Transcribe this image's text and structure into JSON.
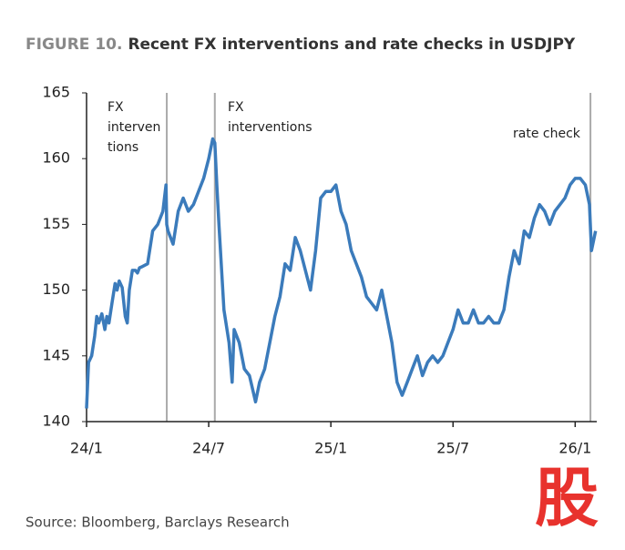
{
  "chart_data": {
    "type": "line",
    "title_prefix": "FIGURE 10.",
    "title": "Recent FX interventions and rate checks in USDJPY",
    "source": "Source: Bloomberg, Barclays Research",
    "watermark": "股",
    "x": [
      0,
      0.1,
      0.25,
      0.4,
      0.5,
      0.6,
      0.75,
      0.9,
      1.0,
      1.1,
      1.25,
      1.4,
      1.5,
      1.6,
      1.75,
      1.9,
      2.0,
      2.1,
      2.25,
      2.4,
      2.5,
      2.6,
      2.75,
      3.0,
      3.25,
      3.5,
      3.75,
      3.9,
      3.94,
      4.0,
      4.25,
      4.5,
      4.75,
      5.0,
      5.25,
      5.5,
      5.75,
      6.0,
      6.2,
      6.3,
      6.4,
      6.5,
      6.75,
      7.0,
      7.15,
      7.25,
      7.5,
      7.75,
      8.0,
      8.3,
      8.5,
      8.75,
      9.0,
      9.25,
      9.5,
      9.75,
      10.0,
      10.25,
      10.5,
      10.75,
      11.0,
      11.25,
      11.5,
      11.75,
      12.0,
      12.25,
      12.5,
      12.75,
      13.0,
      13.25,
      13.5,
      13.75,
      14.0,
      14.25,
      14.5,
      14.75,
      15.0,
      15.25,
      15.5,
      15.75,
      16.0,
      16.25,
      16.5,
      16.75,
      17.0,
      17.25,
      17.5,
      17.75,
      18.0,
      18.25,
      18.5,
      18.75,
      19.0,
      19.25,
      19.5,
      19.75,
      20.0,
      20.25,
      20.5,
      20.75,
      21.0,
      21.25,
      21.5,
      21.75,
      22.0,
      22.25,
      22.5,
      22.75,
      23.0,
      23.25,
      23.5,
      23.75,
      24.0,
      24.25,
      24.5,
      24.7,
      24.8,
      25.0
    ],
    "series": [
      {
        "name": "USDJPY",
        "color": "#3b7bbb",
        "values": [
          141,
          144.5,
          145,
          146.5,
          148,
          147.5,
          148.2,
          147,
          148,
          147.5,
          149,
          150.5,
          150,
          150.7,
          150.2,
          148,
          147.5,
          150,
          151.5,
          151.5,
          151.3,
          151.7,
          151.8,
          152,
          154.5,
          155,
          156,
          158,
          155,
          154.5,
          153.5,
          156,
          157,
          156,
          156.5,
          157.5,
          158.5,
          160,
          161.5,
          161.2,
          158,
          155,
          148.5,
          146,
          143,
          147,
          146,
          144,
          143.5,
          141.5,
          143,
          144,
          146,
          148,
          149.5,
          152,
          151.5,
          154,
          153,
          151.5,
          150,
          153,
          157,
          157.5,
          157.5,
          158,
          156,
          155,
          153,
          152,
          151,
          149.5,
          149,
          148.5,
          150,
          148,
          146,
          143,
          142,
          143,
          144,
          145,
          143.5,
          144.5,
          145,
          144.5,
          145,
          146,
          147,
          148.5,
          147.5,
          147.5,
          148.5,
          147.5,
          147.5,
          148,
          147.5,
          147.5,
          148.5,
          151,
          153,
          152,
          154.5,
          154,
          155.5,
          156.5,
          156,
          155,
          156,
          156.5,
          157,
          158,
          158.5,
          158.5,
          158,
          156.5,
          153,
          154.5
        ]
      }
    ],
    "xlim": [
      0,
      25.06
    ],
    "xticks": [
      {
        "value": 0,
        "label": "24/1"
      },
      {
        "value": 6,
        "label": "24/7"
      },
      {
        "value": 12,
        "label": "25/1"
      },
      {
        "value": 18,
        "label": "25/7"
      },
      {
        "value": 24,
        "label": "26/1"
      }
    ],
    "ylim": [
      140,
      165
    ],
    "yticks": [
      140,
      145,
      150,
      155,
      160,
      165
    ],
    "vlines": [
      3.94,
      6.3,
      24.75
    ],
    "vline_color": "#aaaaaa",
    "annotations": [
      {
        "lines": [
          "FX",
          "interven",
          "tions"
        ]
      },
      {
        "lines": [
          "FX",
          "interventions"
        ]
      },
      {
        "lines": [
          "rate check"
        ]
      }
    ]
  }
}
